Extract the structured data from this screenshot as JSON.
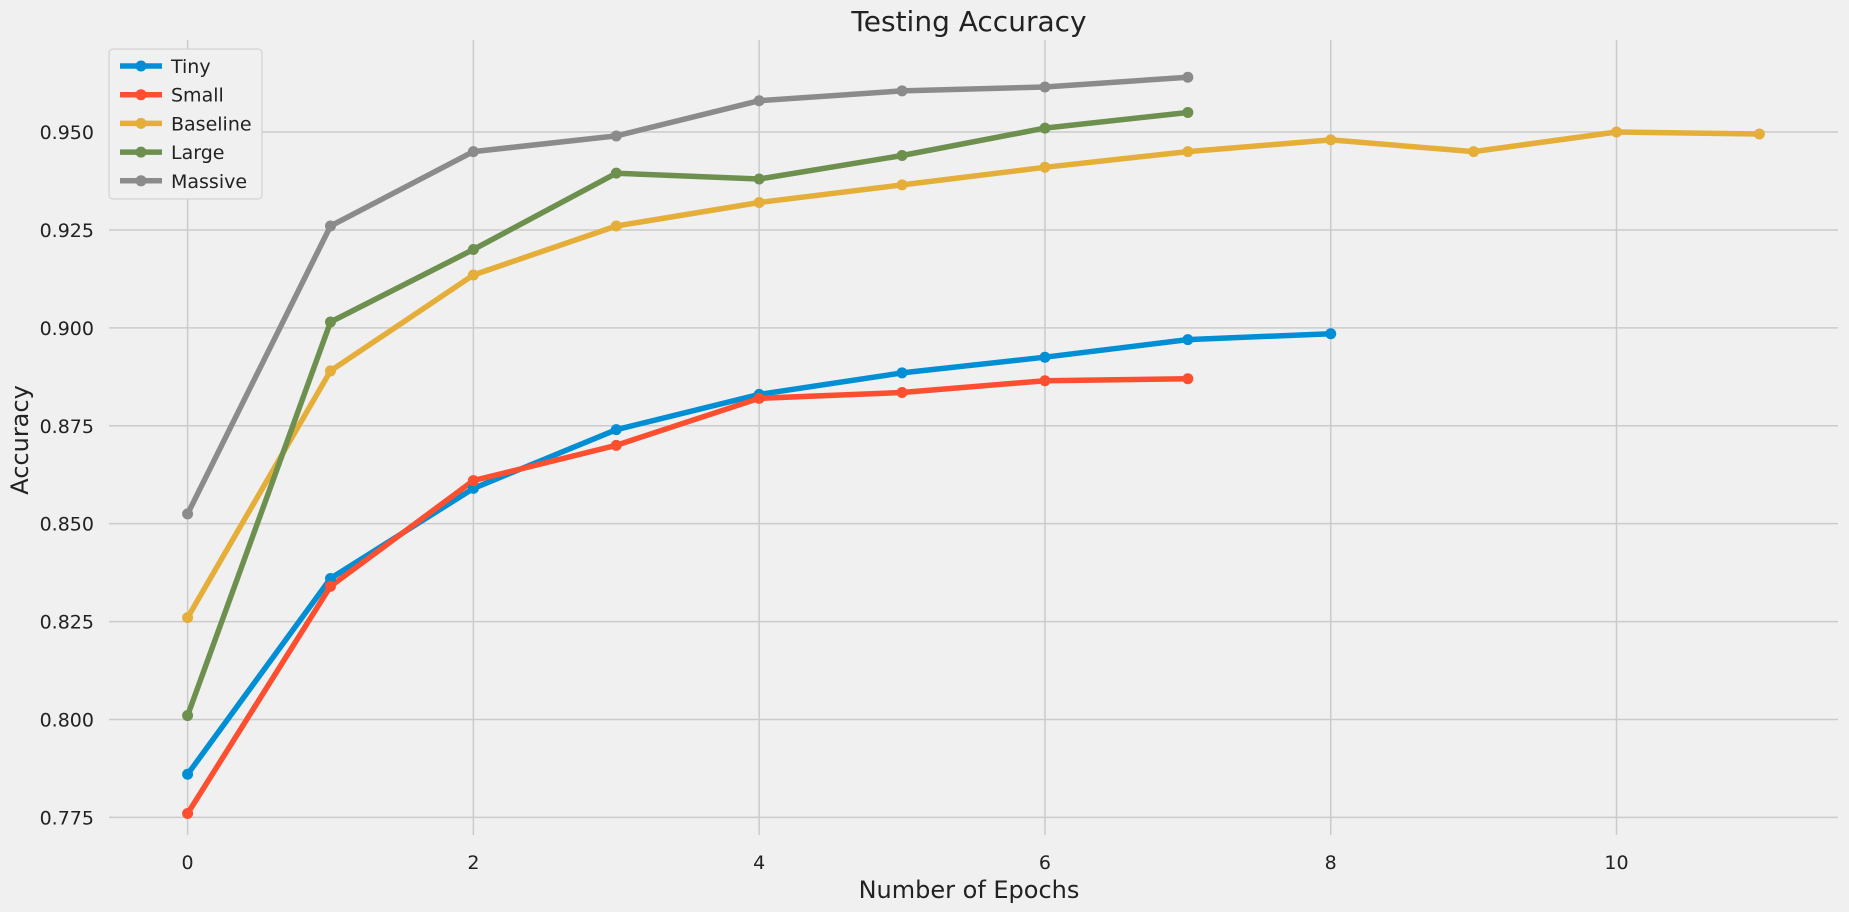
{
  "chart_data": {
    "type": "line",
    "title": "Testing Accuracy",
    "xlabel": "Number of Epochs",
    "ylabel": "Accuracy",
    "xlim": [
      -0.55,
      11.55
    ],
    "ylim": [
      0.7705,
      0.9735
    ],
    "x_ticks": [
      0,
      2,
      4,
      6,
      8,
      10
    ],
    "y_ticks": [
      0.775,
      0.8,
      0.825,
      0.85,
      0.875,
      0.9,
      0.925,
      0.95
    ],
    "x_tick_labels": [
      "0",
      "2",
      "4",
      "6",
      "8",
      "10"
    ],
    "y_tick_labels": [
      "0.775",
      "0.800",
      "0.825",
      "0.850",
      "0.875",
      "0.900",
      "0.925",
      "0.950"
    ],
    "grid": true,
    "legend_position": "top-left",
    "series": [
      {
        "name": "Tiny",
        "color": "#008fd5",
        "x": [
          0,
          1,
          2,
          3,
          4,
          5,
          6,
          7,
          8
        ],
        "values": [
          0.786,
          0.836,
          0.859,
          0.874,
          0.883,
          0.8885,
          0.8925,
          0.897,
          0.8985
        ]
      },
      {
        "name": "Small",
        "color": "#fc4f30",
        "x": [
          0,
          1,
          2,
          3,
          4,
          5,
          6,
          7
        ],
        "values": [
          0.776,
          0.834,
          0.861,
          0.87,
          0.882,
          0.8835,
          0.8865,
          0.887
        ]
      },
      {
        "name": "Baseline",
        "color": "#e5ae38",
        "x": [
          0,
          1,
          2,
          3,
          4,
          5,
          6,
          7,
          8,
          9,
          10,
          11
        ],
        "values": [
          0.826,
          0.889,
          0.9135,
          0.926,
          0.932,
          0.9365,
          0.941,
          0.945,
          0.948,
          0.945,
          0.95,
          0.9495
        ]
      },
      {
        "name": "Large",
        "color": "#6d904f",
        "x": [
          0,
          1,
          2,
          3,
          4,
          5,
          6,
          7
        ],
        "values": [
          0.801,
          0.9015,
          0.92,
          0.9395,
          0.938,
          0.944,
          0.951,
          0.955
        ]
      },
      {
        "name": "Massive",
        "color": "#8b8b8b",
        "x": [
          0,
          1,
          2,
          3,
          4,
          5,
          6,
          7
        ],
        "values": [
          0.8525,
          0.926,
          0.945,
          0.949,
          0.958,
          0.9605,
          0.9615,
          0.964
        ]
      }
    ]
  }
}
